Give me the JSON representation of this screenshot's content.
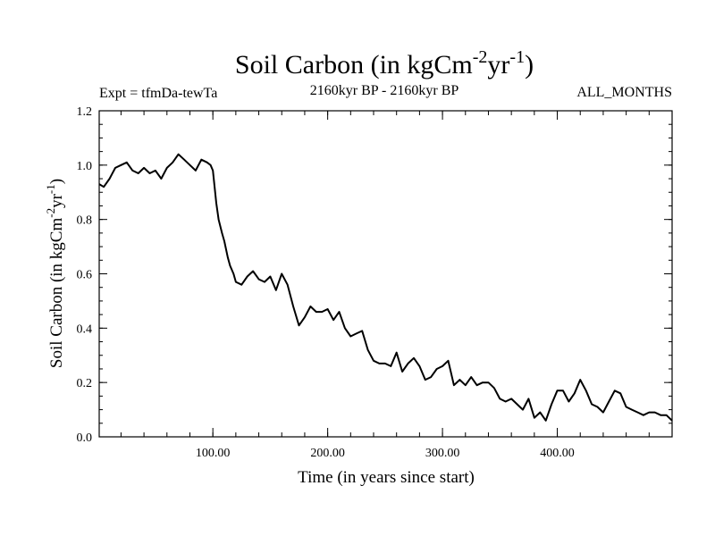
{
  "chart_data": {
    "type": "line",
    "title": {
      "main": "Soil Carbon (in kgCm",
      "sup1": "-2",
      "mid": "yr",
      "sup2": "-1",
      "end": ")"
    },
    "subtitle_left": "Expt = tfmDa-tewTa",
    "subtitle_center": "2160kyr BP - 2160kyr BP",
    "subtitle_right": "ALL_MONTHS",
    "xlabel": "Time (in years since start)",
    "ylabel": {
      "main": "Soil Carbon (in kgCm",
      "sup1": "-2",
      "mid": "yr",
      "sup2": "-1",
      "end": ")"
    },
    "xlim": [
      1,
      500
    ],
    "ylim": [
      0,
      1.2
    ],
    "x_ticks": [
      100,
      200,
      300,
      400
    ],
    "x_tick_labels": [
      "100.00",
      "200.00",
      "300.00",
      "400.00"
    ],
    "y_ticks": [
      0,
      0.2,
      0.4,
      0.6,
      0.8,
      1.0,
      1.2
    ],
    "y_tick_labels": [
      "0.0",
      "0.2",
      "0.4",
      "0.6",
      "0.8",
      "1.0",
      "1.2"
    ],
    "series": [
      {
        "name": "Soil Carbon",
        "x": [
          1,
          5,
          10,
          15,
          20,
          25,
          30,
          35,
          40,
          45,
          50,
          55,
          60,
          65,
          70,
          75,
          80,
          85,
          90,
          95,
          98,
          100,
          103,
          105,
          108,
          110,
          113,
          115,
          118,
          120,
          125,
          130,
          135,
          140,
          145,
          150,
          155,
          160,
          165,
          170,
          175,
          180,
          185,
          190,
          195,
          200,
          205,
          210,
          215,
          220,
          225,
          230,
          235,
          240,
          245,
          250,
          255,
          260,
          265,
          270,
          275,
          280,
          285,
          290,
          295,
          300,
          305,
          310,
          315,
          320,
          325,
          330,
          335,
          340,
          345,
          350,
          355,
          360,
          365,
          370,
          375,
          380,
          385,
          390,
          395,
          400,
          405,
          410,
          415,
          420,
          425,
          430,
          435,
          440,
          445,
          450,
          455,
          460,
          465,
          470,
          475,
          480,
          485,
          490,
          495,
          500
        ],
        "y": [
          0.93,
          0.92,
          0.95,
          0.99,
          1.0,
          1.01,
          0.98,
          0.97,
          0.99,
          0.97,
          0.98,
          0.95,
          0.99,
          1.01,
          1.04,
          1.02,
          1.0,
          0.98,
          1.02,
          1.01,
          1.0,
          0.98,
          0.86,
          0.8,
          0.75,
          0.72,
          0.66,
          0.63,
          0.6,
          0.57,
          0.56,
          0.59,
          0.61,
          0.58,
          0.57,
          0.59,
          0.54,
          0.6,
          0.56,
          0.48,
          0.41,
          0.44,
          0.48,
          0.46,
          0.46,
          0.47,
          0.43,
          0.46,
          0.4,
          0.37,
          0.38,
          0.39,
          0.32,
          0.28,
          0.27,
          0.27,
          0.26,
          0.31,
          0.24,
          0.27,
          0.29,
          0.26,
          0.21,
          0.22,
          0.25,
          0.26,
          0.28,
          0.19,
          0.21,
          0.19,
          0.22,
          0.19,
          0.2,
          0.2,
          0.18,
          0.14,
          0.13,
          0.14,
          0.12,
          0.1,
          0.14,
          0.07,
          0.09,
          0.06,
          0.12,
          0.17,
          0.17,
          0.13,
          0.16,
          0.21,
          0.17,
          0.12,
          0.11,
          0.09,
          0.13,
          0.17,
          0.16,
          0.11,
          0.1,
          0.09,
          0.08,
          0.09,
          0.09,
          0.08,
          0.08,
          0.06
        ]
      }
    ]
  }
}
